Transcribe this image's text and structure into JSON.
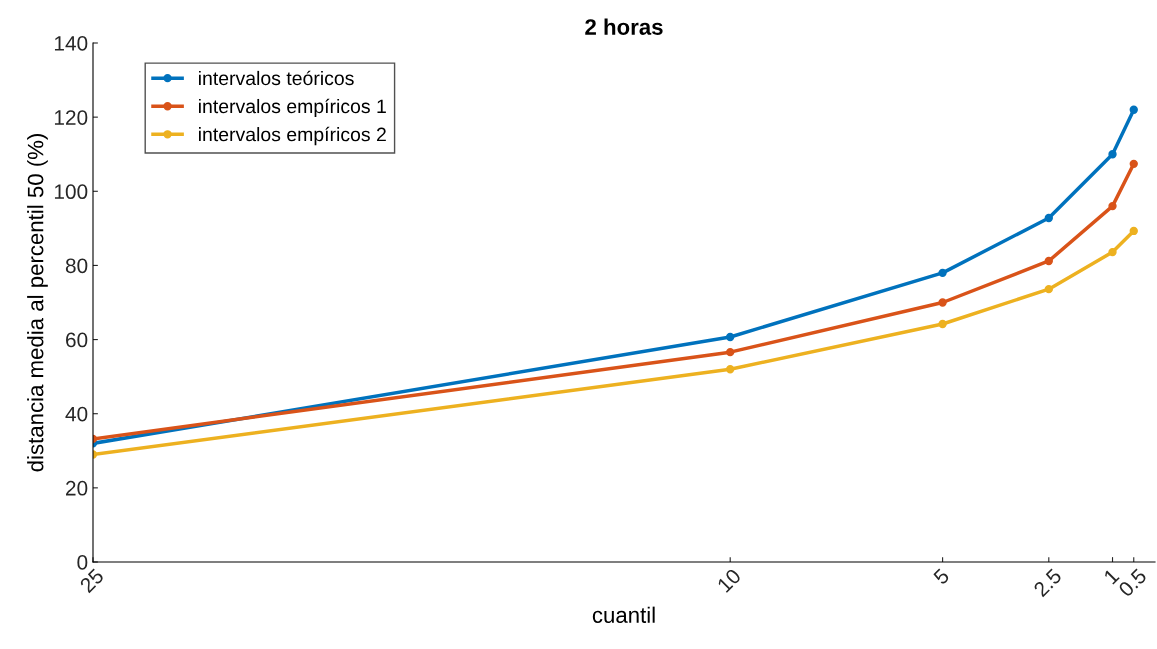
{
  "chart_data": {
    "type": "line",
    "title": "2 horas",
    "xlabel": "cuantil",
    "ylabel": "distancia media al percentil 50 (%)",
    "x": [
      25,
      10,
      5,
      2.5,
      1,
      0.5
    ],
    "series": [
      {
        "name": "intervalos teóricos",
        "color": "#0072bd",
        "values": [
          32,
          60.7,
          78,
          92.8,
          110,
          122
        ]
      },
      {
        "name": "intervalos empíricos 1",
        "color": "#d95319",
        "values": [
          33.2,
          56.6,
          70,
          81.2,
          96,
          107.4
        ]
      },
      {
        "name": "intervalos empíricos 2",
        "color": "#edb120",
        "values": [
          29,
          52,
          64.2,
          73.6,
          83.6,
          89.3
        ]
      }
    ],
    "xlim": [
      25,
      0
    ],
    "xticks": [
      25,
      10,
      5,
      2.5,
      1,
      0.5
    ],
    "ylim": [
      0,
      140
    ],
    "yticks": [
      0,
      20,
      40,
      60,
      80,
      100,
      120,
      140
    ],
    "grid": false,
    "legend": "top left",
    "marker": "circle",
    "line_style": "solid"
  }
}
